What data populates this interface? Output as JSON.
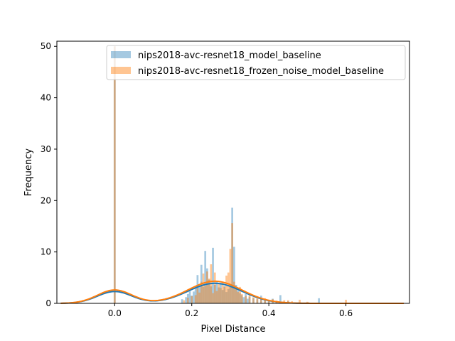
{
  "chart_data": {
    "type": "histogram",
    "xlabel": "Pixel Distance",
    "ylabel": "Frequency",
    "xlim": [
      -0.15,
      0.765
    ],
    "ylim": [
      0,
      51
    ],
    "xticks": [
      0.0,
      0.2,
      0.4,
      0.6
    ],
    "xtick_labels": [
      "0.0",
      "0.2",
      "0.4",
      "0.6"
    ],
    "yticks": [
      0,
      10,
      20,
      30,
      40,
      50
    ],
    "ytick_labels": [
      "0",
      "10",
      "20",
      "30",
      "40",
      "50"
    ],
    "legend_position": "top-right",
    "grid": false,
    "bar_width": 0.005,
    "series": [
      {
        "name": "nips2018-avc-resnet18_model_baseline",
        "color": "#1f77b4",
        "hist_opacity": 0.4,
        "bins": [
          [
            0.0,
            50.0
          ],
          [
            0.175,
            0.8
          ],
          [
            0.185,
            1.2
          ],
          [
            0.19,
            1.8
          ],
          [
            0.195,
            2.4
          ],
          [
            0.2,
            1.5
          ],
          [
            0.205,
            2.3
          ],
          [
            0.21,
            3.3
          ],
          [
            0.215,
            5.5
          ],
          [
            0.22,
            3.5
          ],
          [
            0.225,
            7.5
          ],
          [
            0.23,
            3.2
          ],
          [
            0.235,
            10.2
          ],
          [
            0.24,
            6.8
          ],
          [
            0.245,
            4.6
          ],
          [
            0.25,
            3.3
          ],
          [
            0.255,
            10.8
          ],
          [
            0.26,
            3.6
          ],
          [
            0.265,
            4.4
          ],
          [
            0.27,
            3.1
          ],
          [
            0.275,
            4.0
          ],
          [
            0.28,
            2.6
          ],
          [
            0.285,
            3.4
          ],
          [
            0.29,
            2.2
          ],
          [
            0.295,
            2.8
          ],
          [
            0.3,
            3.2
          ],
          [
            0.305,
            18.6
          ],
          [
            0.31,
            11.0
          ],
          [
            0.315,
            3.6
          ],
          [
            0.32,
            2.5
          ],
          [
            0.325,
            2.0
          ],
          [
            0.33,
            1.6
          ],
          [
            0.335,
            1.2
          ],
          [
            0.34,
            1.8
          ],
          [
            0.345,
            0.9
          ],
          [
            0.35,
            1.3
          ],
          [
            0.36,
            1.0
          ],
          [
            0.37,
            0.8
          ],
          [
            0.38,
            1.5
          ],
          [
            0.39,
            0.7
          ],
          [
            0.4,
            0.6
          ],
          [
            0.41,
            0.9
          ],
          [
            0.42,
            0.5
          ],
          [
            0.43,
            1.6
          ],
          [
            0.45,
            0.4
          ],
          [
            0.53,
            1.0
          ]
        ],
        "kde_peaks": [
          [
            0.0,
            2.3
          ],
          [
            0.26,
            3.9
          ]
        ]
      },
      {
        "name": "nips2018-avc-resnet18_frozen_noise_model_baseline",
        "color": "#ff7f0e",
        "hist_opacity": 0.45,
        "bins": [
          [
            0.0,
            50.0
          ],
          [
            0.18,
            0.6
          ],
          [
            0.19,
            1.1
          ],
          [
            0.2,
            1.4
          ],
          [
            0.21,
            1.6
          ],
          [
            0.215,
            3.0
          ],
          [
            0.22,
            2.1
          ],
          [
            0.225,
            4.2
          ],
          [
            0.23,
            5.8
          ],
          [
            0.235,
            3.4
          ],
          [
            0.24,
            6.2
          ],
          [
            0.245,
            4.8
          ],
          [
            0.25,
            7.6
          ],
          [
            0.255,
            2.0
          ],
          [
            0.26,
            6.0
          ],
          [
            0.265,
            2.4
          ],
          [
            0.27,
            3.8
          ],
          [
            0.275,
            3.0
          ],
          [
            0.28,
            4.0
          ],
          [
            0.285,
            3.2
          ],
          [
            0.29,
            5.4
          ],
          [
            0.295,
            6.0
          ],
          [
            0.3,
            10.6
          ],
          [
            0.305,
            15.6
          ],
          [
            0.31,
            4.2
          ],
          [
            0.315,
            3.0
          ],
          [
            0.32,
            2.2
          ],
          [
            0.325,
            3.2
          ],
          [
            0.33,
            1.8
          ],
          [
            0.34,
            1.4
          ],
          [
            0.35,
            2.0
          ],
          [
            0.36,
            1.2
          ],
          [
            0.37,
            1.4
          ],
          [
            0.38,
            0.8
          ],
          [
            0.39,
            1.0
          ],
          [
            0.4,
            0.6
          ],
          [
            0.41,
            0.8
          ],
          [
            0.42,
            0.5
          ],
          [
            0.44,
            0.6
          ],
          [
            0.45,
            0.6
          ],
          [
            0.46,
            0.4
          ],
          [
            0.48,
            0.7
          ],
          [
            0.5,
            0.3
          ],
          [
            0.6,
            0.7
          ]
        ],
        "kde_peaks": [
          [
            0.0,
            2.6
          ],
          [
            0.26,
            4.3
          ]
        ]
      }
    ]
  }
}
